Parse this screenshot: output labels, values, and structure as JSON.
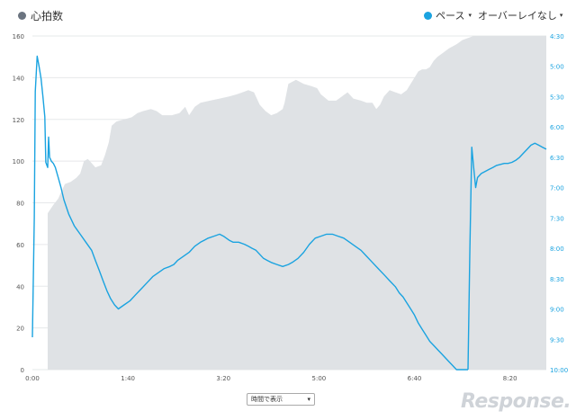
{
  "legend": {
    "heart_rate_label": "心拍数",
    "heart_rate_color": "#6b7480",
    "pace_label": "ペース",
    "pace_caret": "▾",
    "pace_color": "#1aa3e0",
    "overlay_label": "オーバーレイなし",
    "overlay_caret": "▾"
  },
  "time_select": {
    "value": "時間で表示",
    "arrow": "▾"
  },
  "watermark": "Response.",
  "chart_data": {
    "type": "area",
    "x_ticks": [
      "0:00",
      "1:40",
      "3:20",
      "5:00",
      "6:40",
      "8:20"
    ],
    "x_tick_seconds": [
      0,
      100,
      200,
      300,
      400,
      500
    ],
    "xlim_seconds": [
      0,
      538
    ],
    "left_axis": {
      "ticks": [
        0,
        20,
        40,
        60,
        80,
        100,
        120,
        140,
        160
      ],
      "ylim": [
        0,
        160
      ]
    },
    "right_axis": {
      "ticks": [
        "4:30",
        "5:00",
        "5:30",
        "6:00",
        "6:30",
        "7:00",
        "7:30",
        "8:00",
        "8:30",
        "9:00",
        "9:30",
        "10:00"
      ],
      "ylim_seconds_per_km": [
        270,
        600
      ],
      "inverted": true
    },
    "series": [
      {
        "type": "area",
        "axis": "left",
        "color": "#dfe2e5",
        "points": [
          [
            16,
            0
          ],
          [
            16,
            75
          ],
          [
            22,
            79
          ],
          [
            27,
            82
          ],
          [
            30,
            85
          ],
          [
            34,
            89
          ],
          [
            40,
            90
          ],
          [
            46,
            92
          ],
          [
            50,
            94
          ],
          [
            54,
            100
          ],
          [
            58,
            101
          ],
          [
            62,
            99
          ],
          [
            66,
            97
          ],
          [
            72,
            98
          ],
          [
            76,
            103
          ],
          [
            80,
            109
          ],
          [
            83,
            117
          ],
          [
            88,
            119
          ],
          [
            96,
            120
          ],
          [
            104,
            121
          ],
          [
            110,
            123
          ],
          [
            116,
            124
          ],
          [
            124,
            125
          ],
          [
            130,
            124
          ],
          [
            136,
            122
          ],
          [
            146,
            122
          ],
          [
            154,
            123
          ],
          [
            160,
            126
          ],
          [
            164,
            122
          ],
          [
            170,
            126
          ],
          [
            176,
            128
          ],
          [
            186,
            129
          ],
          [
            196,
            130
          ],
          [
            206,
            131
          ],
          [
            214,
            132
          ],
          [
            220,
            133
          ],
          [
            226,
            134
          ],
          [
            232,
            133
          ],
          [
            238,
            127
          ],
          [
            244,
            124
          ],
          [
            250,
            122
          ],
          [
            256,
            123
          ],
          [
            262,
            125
          ],
          [
            264,
            128
          ],
          [
            268,
            137
          ],
          [
            276,
            139
          ],
          [
            284,
            137
          ],
          [
            292,
            136
          ],
          [
            298,
            135
          ],
          [
            302,
            132
          ],
          [
            310,
            129
          ],
          [
            318,
            129
          ],
          [
            324,
            131
          ],
          [
            330,
            133
          ],
          [
            336,
            130
          ],
          [
            344,
            129
          ],
          [
            350,
            128
          ],
          [
            356,
            128
          ],
          [
            360,
            125
          ],
          [
            364,
            127
          ],
          [
            368,
            131
          ],
          [
            374,
            134
          ],
          [
            380,
            133
          ],
          [
            386,
            132
          ],
          [
            392,
            134
          ],
          [
            396,
            137
          ],
          [
            400,
            140
          ],
          [
            404,
            143
          ],
          [
            408,
            144
          ],
          [
            412,
            144
          ],
          [
            416,
            145
          ],
          [
            420,
            148
          ],
          [
            424,
            150
          ],
          [
            430,
            152
          ],
          [
            436,
            154
          ],
          [
            444,
            156
          ],
          [
            450,
            158
          ],
          [
            456,
            159
          ],
          [
            462,
            160
          ],
          [
            538,
            160
          ],
          [
            538,
            0
          ]
        ]
      },
      {
        "type": "line",
        "axis": "right",
        "color": "#1aa3e0",
        "points": [
          [
            0,
            568
          ],
          [
            2,
            450
          ],
          [
            3,
            325
          ],
          [
            5,
            290
          ],
          [
            7,
            300
          ],
          [
            9,
            312
          ],
          [
            11,
            330
          ],
          [
            13,
            350
          ],
          [
            14,
            395
          ],
          [
            16,
            400
          ],
          [
            17,
            370
          ],
          [
            18,
            390
          ],
          [
            20,
            394
          ],
          [
            22,
            396
          ],
          [
            24,
            400
          ],
          [
            27,
            410
          ],
          [
            30,
            420
          ],
          [
            33,
            432
          ],
          [
            38,
            446
          ],
          [
            44,
            458
          ],
          [
            50,
            466
          ],
          [
            56,
            474
          ],
          [
            62,
            482
          ],
          [
            66,
            492
          ],
          [
            70,
            502
          ],
          [
            74,
            512
          ],
          [
            78,
            522
          ],
          [
            82,
            530
          ],
          [
            86,
            536
          ],
          [
            90,
            540
          ],
          [
            96,
            536
          ],
          [
            102,
            532
          ],
          [
            108,
            526
          ],
          [
            114,
            520
          ],
          [
            120,
            514
          ],
          [
            126,
            508
          ],
          [
            132,
            504
          ],
          [
            138,
            500
          ],
          [
            144,
            498
          ],
          [
            148,
            496
          ],
          [
            152,
            492
          ],
          [
            158,
            488
          ],
          [
            164,
            484
          ],
          [
            170,
            478
          ],
          [
            176,
            474
          ],
          [
            180,
            472
          ],
          [
            184,
            470
          ],
          [
            190,
            468
          ],
          [
            196,
            466
          ],
          [
            200,
            468
          ],
          [
            206,
            472
          ],
          [
            210,
            474
          ],
          [
            216,
            474
          ],
          [
            222,
            476
          ],
          [
            226,
            478
          ],
          [
            230,
            480
          ],
          [
            234,
            482
          ],
          [
            238,
            486
          ],
          [
            242,
            490
          ],
          [
            246,
            492
          ],
          [
            250,
            494
          ],
          [
            256,
            496
          ],
          [
            262,
            498
          ],
          [
            268,
            496
          ],
          [
            272,
            494
          ],
          [
            278,
            490
          ],
          [
            284,
            484
          ],
          [
            290,
            476
          ],
          [
            296,
            470
          ],
          [
            302,
            468
          ],
          [
            308,
            466
          ],
          [
            314,
            466
          ],
          [
            320,
            468
          ],
          [
            326,
            470
          ],
          [
            332,
            474
          ],
          [
            338,
            478
          ],
          [
            344,
            482
          ],
          [
            350,
            488
          ],
          [
            356,
            494
          ],
          [
            362,
            500
          ],
          [
            368,
            506
          ],
          [
            374,
            512
          ],
          [
            380,
            518
          ],
          [
            384,
            524
          ],
          [
            388,
            528
          ],
          [
            392,
            534
          ],
          [
            396,
            540
          ],
          [
            400,
            546
          ],
          [
            404,
            554
          ],
          [
            408,
            560
          ],
          [
            412,
            566
          ],
          [
            416,
            572
          ],
          [
            420,
            576
          ],
          [
            424,
            580
          ],
          [
            428,
            584
          ],
          [
            432,
            588
          ],
          [
            436,
            592
          ],
          [
            440,
            596
          ],
          [
            444,
            600
          ],
          [
            448,
            600
          ],
          [
            452,
            600
          ],
          [
            454,
            600
          ],
          [
            456,
            600
          ]
        ]
      },
      {
        "type": "line",
        "axis": "right",
        "color": "#1aa3e0",
        "points": [
          [
            456,
            600
          ],
          [
            458,
            480
          ],
          [
            460,
            380
          ],
          [
            462,
            400
          ],
          [
            464,
            420
          ],
          [
            466,
            410
          ],
          [
            468,
            408
          ],
          [
            470,
            406
          ],
          [
            474,
            404
          ],
          [
            478,
            402
          ],
          [
            482,
            400
          ],
          [
            486,
            398
          ],
          [
            490,
            397
          ],
          [
            494,
            396
          ],
          [
            498,
            396
          ],
          [
            502,
            395
          ],
          [
            506,
            393
          ],
          [
            510,
            390
          ],
          [
            514,
            386
          ],
          [
            518,
            382
          ],
          [
            522,
            378
          ],
          [
            526,
            376
          ],
          [
            530,
            378
          ],
          [
            534,
            380
          ],
          [
            538,
            382
          ]
        ]
      }
    ]
  }
}
